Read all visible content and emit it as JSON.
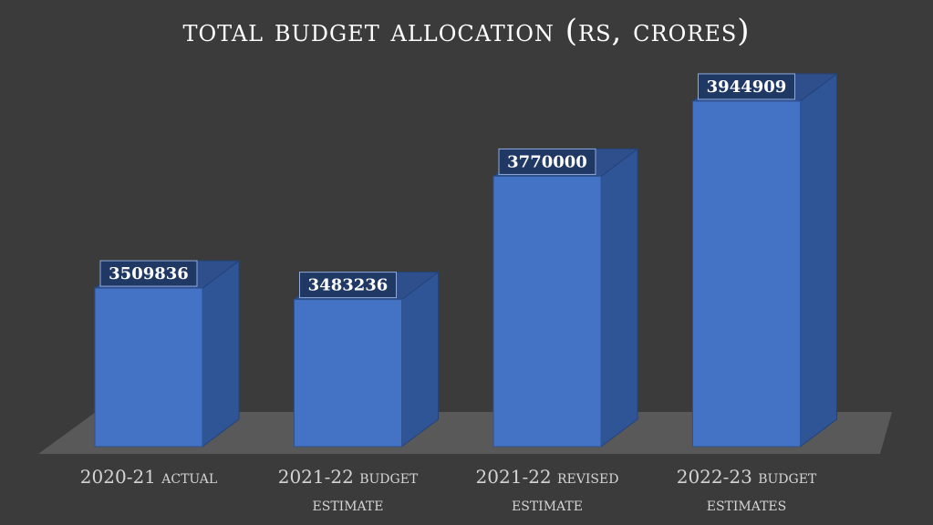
{
  "chart_data": {
    "type": "bar",
    "title": "TOTAL BUDGET ALLOCATION (RS, CRORES)",
    "categories": [
      [
        "2020-21 ACTUAL"
      ],
      [
        "2021-22 BUDGET",
        "ESTIMATE"
      ],
      [
        "2021-22 REVISED",
        "ESTIMATE"
      ],
      [
        "2022-23 BUDGET",
        "ESTIMATES"
      ]
    ],
    "values": [
      3509836,
      3483236,
      3770000,
      3944909
    ],
    "data_labels": [
      "3509836",
      "3483236",
      "3770000",
      "3944909"
    ],
    "ylim": [
      3300000,
      4000000
    ],
    "xlabel": "",
    "ylabel": "",
    "grid": false,
    "legend": "none"
  },
  "colors": {
    "background": "#3b3b3b",
    "floor": "#595959",
    "bar_front": "#4472c4",
    "bar_side": "#2f5597",
    "bar_top": "#2e4f8c",
    "label_bg": "#203864",
    "label_text": "#ffffff"
  }
}
